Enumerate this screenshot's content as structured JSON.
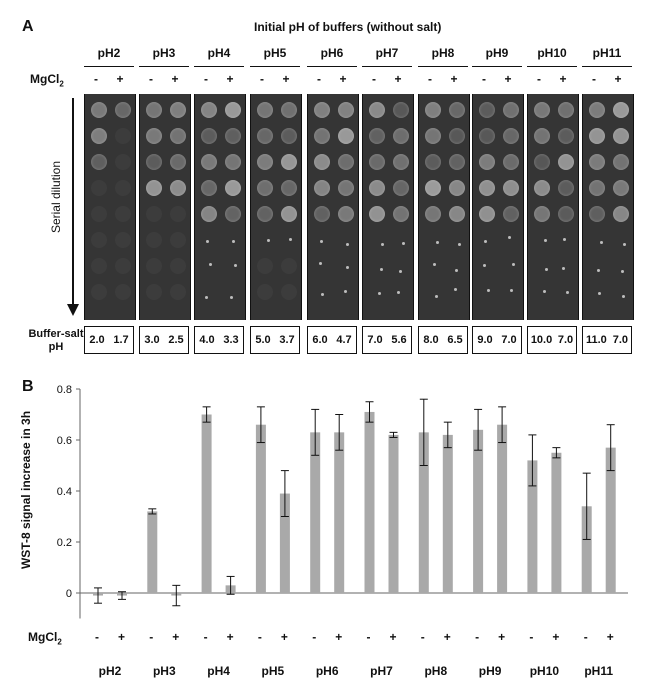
{
  "panel_a": {
    "letter": "A",
    "title": "Initial pH of buffers (without salt)",
    "mgcl2_label": "MgCl",
    "mgcl2_sub": "2",
    "minus": "-",
    "plus": "+",
    "serial_dilution_label": "Serial dilution",
    "buffer_salt_label_line1": "Buffer-salt",
    "buffer_salt_label_line2": "pH",
    "columns": [
      {
        "ph": "pH2",
        "minus_value": "2.0",
        "plus_value": "1.7"
      },
      {
        "ph": "pH3",
        "minus_value": "3.0",
        "plus_value": "2.5"
      },
      {
        "ph": "pH4",
        "minus_value": "4.0",
        "plus_value": "3.3"
      },
      {
        "ph": "pH5",
        "minus_value": "5.0",
        "plus_value": "3.7"
      },
      {
        "ph": "pH6",
        "minus_value": "6.0",
        "plus_value": "4.7"
      },
      {
        "ph": "pH7",
        "minus_value": "7.0",
        "plus_value": "5.6"
      },
      {
        "ph": "pH8",
        "minus_value": "8.0",
        "plus_value": "6.5"
      },
      {
        "ph": "pH9",
        "minus_value": "9.0",
        "plus_value": "7.0"
      },
      {
        "ph": "pH10",
        "minus_value": "10.0",
        "plus_value": "7.0"
      },
      {
        "ph": "pH11",
        "minus_value": "11.0",
        "plus_value": "7.0"
      }
    ],
    "colors": {
      "plate": "#353535",
      "colony": "#bdbdbd"
    }
  },
  "panel_b": {
    "letter": "B",
    "mgcl2_label": "MgCl",
    "mgcl2_sub": "2",
    "minus": "-",
    "plus": "+"
  },
  "chart_data": {
    "type": "bar",
    "ylabel": "WST-8 signal increase in 3h",
    "xlabel": "",
    "ylim": [
      -0.1,
      0.8
    ],
    "yticks": [
      "0",
      "0.2",
      "0.4",
      "0.6",
      "0.8"
    ],
    "ytick_values": [
      0,
      0.2,
      0.4,
      0.6,
      0.8
    ],
    "categories": [
      "pH2",
      "pH3",
      "pH4",
      "pH5",
      "pH6",
      "pH7",
      "pH8",
      "pH9",
      "pH10",
      "pH11"
    ],
    "series": [
      {
        "condition": "-",
        "values": [
          -0.01,
          0.32,
          0.7,
          0.66,
          0.63,
          0.71,
          0.63,
          0.64,
          0.52,
          0.34
        ],
        "errors": [
          0.03,
          0.01,
          0.03,
          0.07,
          0.09,
          0.04,
          0.13,
          0.08,
          0.1,
          0.13
        ]
      },
      {
        "condition": "+",
        "values": [
          -0.01,
          -0.01,
          0.03,
          0.39,
          0.63,
          0.62,
          0.62,
          0.66,
          0.55,
          0.57
        ],
        "errors": [
          0.015,
          0.04,
          0.035,
          0.09,
          0.07,
          0.01,
          0.05,
          0.07,
          0.02,
          0.09
        ]
      }
    ],
    "bar_color": "#a9a9a9",
    "grid": false
  }
}
